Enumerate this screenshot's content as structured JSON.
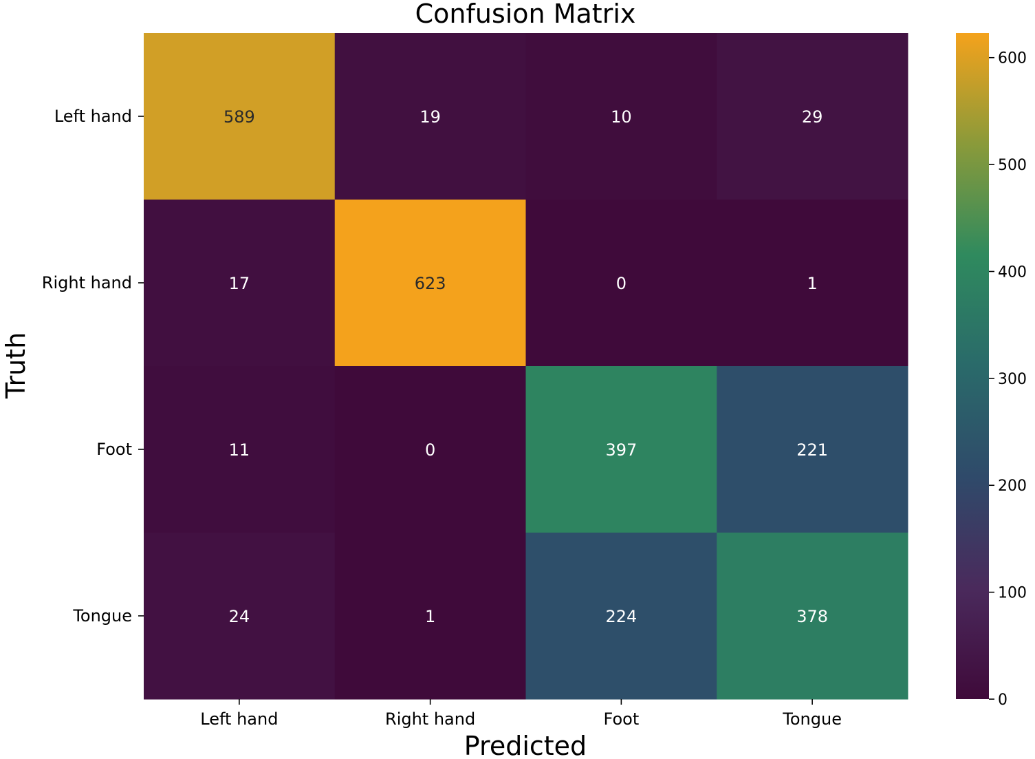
{
  "chart_data": {
    "type": "heatmap",
    "title": "Confusion Matrix",
    "xlabel": "Predicted",
    "ylabel": "Truth",
    "x_categories": [
      "Left hand",
      "Right hand",
      "Foot",
      "Tongue"
    ],
    "y_categories": [
      "Left hand",
      "Right hand",
      "Foot",
      "Tongue"
    ],
    "values": [
      [
        589,
        19,
        10,
        29
      ],
      [
        17,
        623,
        0,
        1
      ],
      [
        11,
        0,
        397,
        221
      ],
      [
        24,
        1,
        224,
        378
      ]
    ],
    "colorbar": {
      "range": [
        0,
        623
      ],
      "ticks": [
        0,
        100,
        200,
        300,
        400,
        500,
        600
      ],
      "tick_labels": [
        "0",
        "100",
        "200",
        "300",
        "400",
        "500",
        "600"
      ],
      "colors": [
        "#3f0a3a",
        "#4a2a5c",
        "#2f4a6a",
        "#2a6a6a",
        "#2f8a5e",
        "#8a9a3a",
        "#f4a21c"
      ]
    },
    "annotation_colors": {
      "light_cells": "#ffffff",
      "dark_cells": "#2a2a2a"
    }
  }
}
